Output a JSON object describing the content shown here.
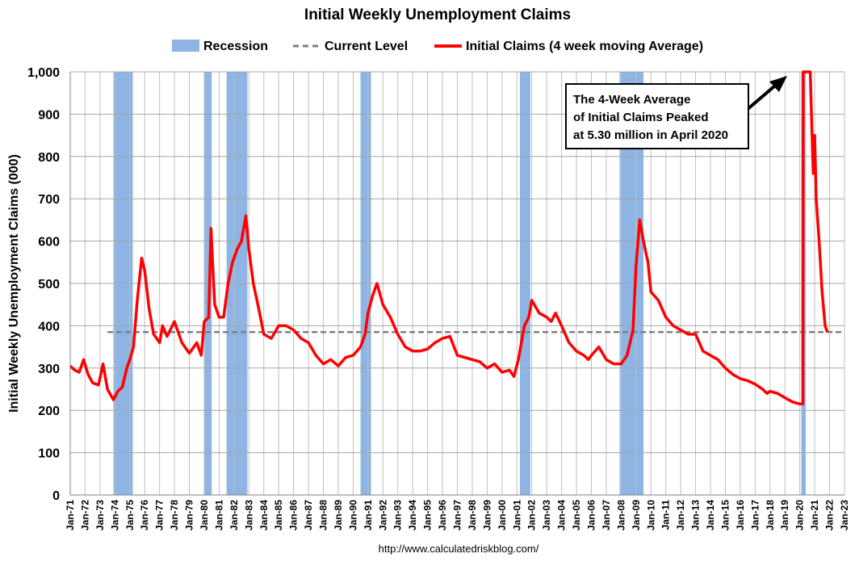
{
  "chart_data": {
    "type": "line",
    "title": "Initial Weekly Unemployment Claims",
    "ylabel": "Initial Weekly Unemployment Claims (000)",
    "xlabel": "",
    "ylim": [
      0,
      1000
    ],
    "yticks": [
      0,
      100,
      200,
      300,
      400,
      500,
      600,
      700,
      800,
      900,
      1000
    ],
    "ytick_labels": [
      "0",
      "100",
      "200",
      "300",
      "400",
      "500",
      "600",
      "700",
      "800",
      "900",
      "1,000"
    ],
    "xlim": [
      1971.0,
      2023.0
    ],
    "x_tick_labels": [
      "Jan-71",
      "Jan-72",
      "Jan-73",
      "Jan-74",
      "Jan-75",
      "Jan-76",
      "Jan-77",
      "Jan-78",
      "Jan-79",
      "Jan-80",
      "Jan-81",
      "Jan-82",
      "Jan-83",
      "Jan-84",
      "Jan-85",
      "Jan-86",
      "Jan-87",
      "Jan-88",
      "Jan-89",
      "Jan-90",
      "Jan-91",
      "Jan-92",
      "Jan-93",
      "Jan-94",
      "Jan-95",
      "Jan-96",
      "Jan-97",
      "Jan-98",
      "Jan-99",
      "Jan-00",
      "Jan-01",
      "Jan-02",
      "Jan-03",
      "Jan-04",
      "Jan-05",
      "Jan-06",
      "Jan-07",
      "Jan-08",
      "Jan-09",
      "Jan-10",
      "Jan-11",
      "Jan-12",
      "Jan-13",
      "Jan-14",
      "Jan-15",
      "Jan-16",
      "Jan-17",
      "Jan-18",
      "Jan-19",
      "Jan-20",
      "Jan-21",
      "Jan-22",
      "Jan-23"
    ],
    "grid": true,
    "legend": {
      "placement": "top",
      "entries": [
        {
          "label": "Recession",
          "style": "bar",
          "color": "#8DB4E2"
        },
        {
          "label": "Current Level",
          "style": "dashed",
          "color": "#808080"
        },
        {
          "label": "Initial Claims (4 week moving Average)",
          "style": "line",
          "color": "#FF0000"
        }
      ]
    },
    "recessions": [
      {
        "start": 1973.9,
        "end": 1975.2
      },
      {
        "start": 1980.0,
        "end": 1980.5
      },
      {
        "start": 1981.5,
        "end": 1982.9
      },
      {
        "start": 1990.5,
        "end": 1991.2
      },
      {
        "start": 2001.2,
        "end": 2001.9
      },
      {
        "start": 2007.9,
        "end": 2009.5
      },
      {
        "start": 2020.1,
        "end": 2020.4
      }
    ],
    "current_level": 385,
    "series": [
      {
        "name": "Initial Claims (4 week moving Average)",
        "color": "#FF0000",
        "x": [
          1971.0,
          1971.3,
          1971.6,
          1971.9,
          1972.2,
          1972.5,
          1972.9,
          1973.2,
          1973.5,
          1973.9,
          1974.2,
          1974.5,
          1974.8,
          1975.0,
          1975.25,
          1975.5,
          1975.8,
          1976.0,
          1976.3,
          1976.6,
          1977.0,
          1977.2,
          1977.5,
          1978.0,
          1978.5,
          1979.0,
          1979.5,
          1979.8,
          1980.0,
          1980.3,
          1980.45,
          1980.7,
          1981.0,
          1981.3,
          1981.6,
          1981.9,
          1982.2,
          1982.5,
          1982.8,
          1983.0,
          1983.3,
          1983.6,
          1984.0,
          1984.5,
          1985.0,
          1985.5,
          1986.0,
          1986.5,
          1987.0,
          1987.5,
          1988.0,
          1988.5,
          1989.0,
          1989.5,
          1990.0,
          1990.5,
          1990.8,
          1991.0,
          1991.3,
          1991.6,
          1992.0,
          1992.5,
          1993.0,
          1993.5,
          1994.0,
          1994.5,
          1995.0,
          1995.5,
          1996.0,
          1996.5,
          1997.0,
          1997.5,
          1998.0,
          1998.5,
          1999.0,
          1999.5,
          2000.0,
          2000.5,
          2000.8,
          2001.1,
          2001.5,
          2001.8,
          2002.0,
          2002.5,
          2003.0,
          2003.3,
          2003.6,
          2004.0,
          2004.5,
          2005.0,
          2005.5,
          2005.8,
          2006.0,
          2006.5,
          2007.0,
          2007.5,
          2008.0,
          2008.4,
          2008.8,
          2009.0,
          2009.25,
          2009.5,
          2009.8,
          2010.0,
          2010.5,
          2011.0,
          2011.5,
          2012.0,
          2012.5,
          2013.0,
          2013.5,
          2014.0,
          2014.5,
          2015.0,
          2015.5,
          2016.0,
          2016.5,
          2017.0,
          2017.5,
          2017.8,
          2018.0,
          2018.5,
          2019.0,
          2019.5,
          2020.0,
          2020.18,
          2020.21,
          2020.23,
          2020.5,
          2020.7,
          2020.8,
          2020.9,
          2021.0,
          2021.1,
          2021.3,
          2021.5,
          2021.7,
          2021.85
        ],
        "values": [
          305,
          295,
          290,
          320,
          285,
          265,
          260,
          310,
          250,
          225,
          245,
          255,
          300,
          320,
          350,
          460,
          560,
          530,
          440,
          380,
          360,
          400,
          375,
          410,
          360,
          335,
          360,
          330,
          410,
          420,
          630,
          450,
          420,
          420,
          500,
          550,
          580,
          600,
          660,
          580,
          500,
          450,
          380,
          370,
          400,
          400,
          390,
          370,
          360,
          330,
          310,
          320,
          305,
          325,
          330,
          350,
          380,
          430,
          470,
          500,
          450,
          420,
          380,
          350,
          340,
          340,
          345,
          360,
          370,
          375,
          330,
          325,
          320,
          315,
          300,
          310,
          290,
          295,
          280,
          320,
          400,
          420,
          460,
          430,
          420,
          410,
          430,
          400,
          360,
          340,
          330,
          320,
          330,
          350,
          320,
          310,
          310,
          330,
          390,
          540,
          650,
          600,
          550,
          480,
          460,
          420,
          400,
          390,
          380,
          380,
          340,
          330,
          320,
          300,
          285,
          275,
          270,
          262,
          250,
          240,
          245,
          240,
          230,
          220,
          215,
          215,
          215,
          1000,
          1000,
          1000,
          880,
          760,
          850,
          700,
          600,
          480,
          400,
          385
        ]
      }
    ],
    "annotation": {
      "lines": [
        "The 4-Week Average",
        "of Initial Claims Peaked",
        "at 5.30 million in April 2020"
      ]
    },
    "source": "http://www.calculatedriskblog.com/"
  }
}
